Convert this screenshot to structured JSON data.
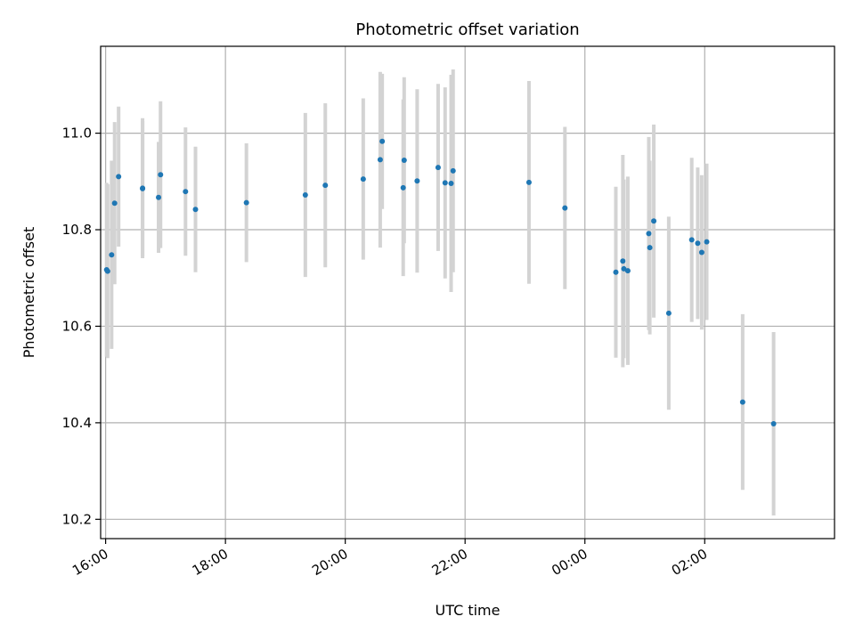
{
  "chart_data": {
    "type": "scatter",
    "title": "Photometric offset variation",
    "xlabel": "UTC time",
    "ylabel": "Photometric offset",
    "x_unit": "UTC, 16:00 day 1 through 03:40 day 2",
    "xlim": [
      "15:55",
      "28:10"
    ],
    "ylim": [
      10.16,
      11.18
    ],
    "x_ticks": [
      {
        "t": "16:00",
        "label": "16:00"
      },
      {
        "t": "18:00",
        "label": "18:00"
      },
      {
        "t": "20:00",
        "label": "20:00"
      },
      {
        "t": "22:00",
        "label": "22:00"
      },
      {
        "t": "24:00",
        "label": "00:00"
      },
      {
        "t": "26:00",
        "label": "02:00"
      }
    ],
    "y_ticks": [
      10.2,
      10.4,
      10.6,
      10.8,
      11.0
    ],
    "grid": true,
    "series": [
      {
        "marker_color": "#1f77b4",
        "errorbar_color": "#d3d3d3",
        "points": [
          {
            "t": "16:01",
            "y": 10.717,
            "err": 0.18
          },
          {
            "t": "16:02",
            "y": 10.714,
            "err": 0.18
          },
          {
            "t": "16:06",
            "y": 10.748,
            "err": 0.195
          },
          {
            "t": "16:09",
            "y": 10.855,
            "err": 0.168
          },
          {
            "t": "16:13",
            "y": 10.91,
            "err": 0.145
          },
          {
            "t": "16:37",
            "y": 10.886,
            "err": 0.145
          },
          {
            "t": "16:37",
            "y": 10.885,
            "err": 0.14
          },
          {
            "t": "16:53",
            "y": 10.867,
            "err": 0.115
          },
          {
            "t": "16:55",
            "y": 10.914,
            "err": 0.152
          },
          {
            "t": "17:20",
            "y": 10.879,
            "err": 0.133
          },
          {
            "t": "17:30",
            "y": 10.842,
            "err": 0.13
          },
          {
            "t": "18:21",
            "y": 10.856,
            "err": 0.123
          },
          {
            "t": "19:20",
            "y": 10.872,
            "err": 0.17
          },
          {
            "t": "19:40",
            "y": 10.892,
            "err": 0.17
          },
          {
            "t": "20:18",
            "y": 10.905,
            "err": 0.167
          },
          {
            "t": "20:35",
            "y": 10.945,
            "err": 0.182
          },
          {
            "t": "20:37",
            "y": 10.983,
            "err": 0.14
          },
          {
            "t": "20:58",
            "y": 10.887,
            "err": 0.183
          },
          {
            "t": "20:59",
            "y": 10.944,
            "err": 0.172
          },
          {
            "t": "21:12",
            "y": 10.901,
            "err": 0.19
          },
          {
            "t": "21:33",
            "y": 10.929,
            "err": 0.173
          },
          {
            "t": "21:40",
            "y": 10.897,
            "err": 0.198
          },
          {
            "t": "21:46",
            "y": 10.896,
            "err": 0.225
          },
          {
            "t": "21:48",
            "y": 10.922,
            "err": 0.21
          },
          {
            "t": "23:04",
            "y": 10.898,
            "err": 0.21
          },
          {
            "t": "23:40",
            "y": 10.845,
            "err": 0.168
          },
          {
            "t": "24:31",
            "y": 10.712,
            "err": 0.177
          },
          {
            "t": "24:38",
            "y": 10.735,
            "err": 0.22
          },
          {
            "t": "24:39",
            "y": 10.719,
            "err": 0.185
          },
          {
            "t": "24:43",
            "y": 10.715,
            "err": 0.195
          },
          {
            "t": "25:04",
            "y": 10.792,
            "err": 0.2
          },
          {
            "t": "25:05",
            "y": 10.763,
            "err": 0.18
          },
          {
            "t": "25:09",
            "y": 10.818,
            "err": 0.2
          },
          {
            "t": "25:24",
            "y": 10.627,
            "err": 0.2
          },
          {
            "t": "25:47",
            "y": 10.779,
            "err": 0.17
          },
          {
            "t": "25:53",
            "y": 10.772,
            "err": 0.157
          },
          {
            "t": "25:57",
            "y": 10.753,
            "err": 0.16
          },
          {
            "t": "26:02",
            "y": 10.775,
            "err": 0.162
          },
          {
            "t": "26:38",
            "y": 10.443,
            "err": 0.182
          },
          {
            "t": "27:09",
            "y": 10.398,
            "err": 0.19
          }
        ]
      }
    ]
  }
}
